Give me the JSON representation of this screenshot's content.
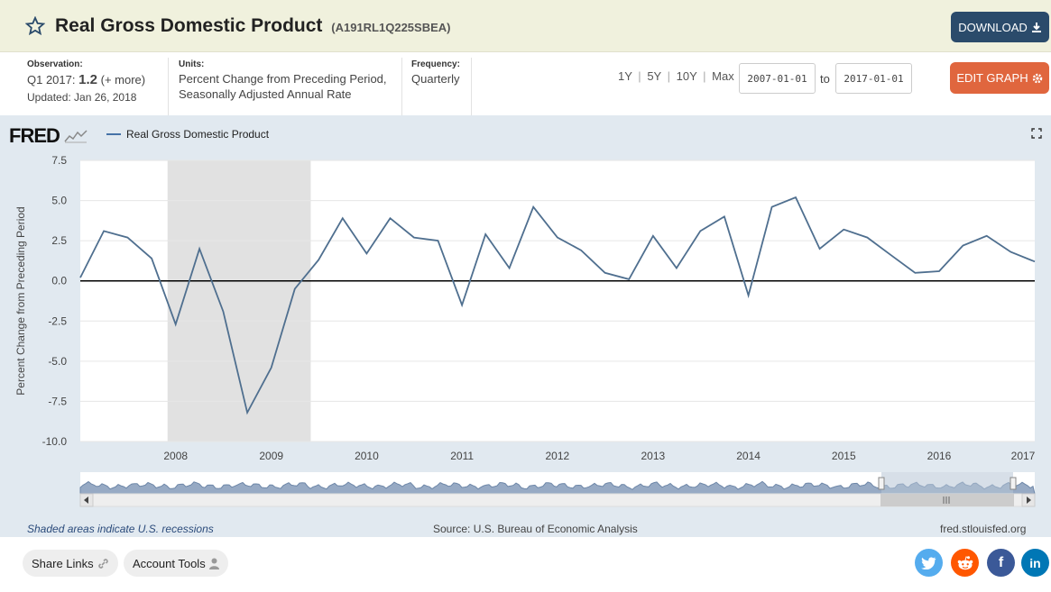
{
  "header": {
    "title": "Real Gross Domestic Product",
    "series_id": "(A191RL1Q225SBEA)",
    "download_label": "DOWNLOAD",
    "star_icon": "star-icon",
    "download_icon": "download-icon"
  },
  "meta": {
    "observation_label": "Observation:",
    "observation_period": "Q1 2017:",
    "observation_value": "1.2",
    "observation_more": "(+ more)",
    "updated": "Updated: Jan 26, 2018",
    "units_label": "Units:",
    "units_line1": "Percent Change from Preceding Period,",
    "units_line2": "Seasonally Adjusted Annual Rate",
    "frequency_label": "Frequency:",
    "frequency_value": "Quarterly",
    "range_1y": "1Y",
    "range_5y": "5Y",
    "range_10y": "10Y",
    "range_max": "Max",
    "sep": "|",
    "start_date": "2007-01-01",
    "to_label": "to",
    "end_date": "2017-01-01",
    "edit_label": "EDIT GRAPH",
    "gear_icon": "gear-icon"
  },
  "graph": {
    "logo": "FRED",
    "legend_label": "Real Gross Domestic Product",
    "line_color": "#4f6f8f",
    "recession_color": "#e1e1e1",
    "fullscreen_icon": "fullscreen-icon"
  },
  "chart_data": {
    "type": "line",
    "ylabel": "Percent Change from Preceding Period",
    "ylim": [
      -10.0,
      7.5
    ],
    "yticks": [
      "7.5",
      "5.0",
      "2.5",
      "0.0",
      "-2.5",
      "-5.0",
      "-7.5",
      "-10.0"
    ],
    "xlabels": [
      "2008",
      "2009",
      "2010",
      "2011",
      "2012",
      "2013",
      "2014",
      "2015",
      "2016",
      "2017"
    ],
    "recession": [
      "2007-12-01",
      "2009-06-01"
    ],
    "series": [
      {
        "name": "Real Gross Domestic Product",
        "x": [
          "2007-01-01",
          "2007-04-01",
          "2007-07-01",
          "2007-10-01",
          "2008-01-01",
          "2008-04-01",
          "2008-07-01",
          "2008-10-01",
          "2009-01-01",
          "2009-04-01",
          "2009-07-01",
          "2009-10-01",
          "2010-01-01",
          "2010-04-01",
          "2010-07-01",
          "2010-10-01",
          "2011-01-01",
          "2011-04-01",
          "2011-07-01",
          "2011-10-01",
          "2012-01-01",
          "2012-04-01",
          "2012-07-01",
          "2012-10-01",
          "2013-01-01",
          "2013-04-01",
          "2013-07-01",
          "2013-10-01",
          "2014-01-01",
          "2014-04-01",
          "2014-07-01",
          "2014-10-01",
          "2015-01-01",
          "2015-04-01",
          "2015-07-01",
          "2015-10-01",
          "2016-01-01",
          "2016-04-01",
          "2016-07-01",
          "2016-10-01",
          "2017-01-01"
        ],
        "values": [
          0.2,
          3.1,
          2.7,
          1.4,
          -2.7,
          2.0,
          -1.9,
          -8.2,
          -5.4,
          -0.5,
          1.3,
          3.9,
          1.7,
          3.9,
          2.7,
          2.5,
          -1.5,
          2.9,
          0.8,
          4.6,
          2.7,
          1.9,
          0.5,
          0.1,
          2.8,
          0.8,
          3.1,
          4.0,
          -0.9,
          4.6,
          5.2,
          2.0,
          3.2,
          2.7,
          1.6,
          0.5,
          0.6,
          2.2,
          2.8,
          1.8,
          1.2
        ]
      }
    ]
  },
  "footer": {
    "recession_note": "Shaded areas indicate U.S. recessions",
    "source": "Source: U.S. Bureau of Economic Analysis",
    "site": "fred.stlouisfed.org"
  },
  "bottom": {
    "share_links": "Share Links",
    "account_tools": "Account Tools",
    "link_icon": "link-icon",
    "user_icon": "user-icon",
    "twitter_icon": "twitter-icon",
    "reddit_icon": "reddit-icon",
    "facebook_icon": "facebook-icon",
    "linkedin_icon": "linkedin-icon",
    "facebook_glyph": "f",
    "linkedin_glyph": "in"
  }
}
